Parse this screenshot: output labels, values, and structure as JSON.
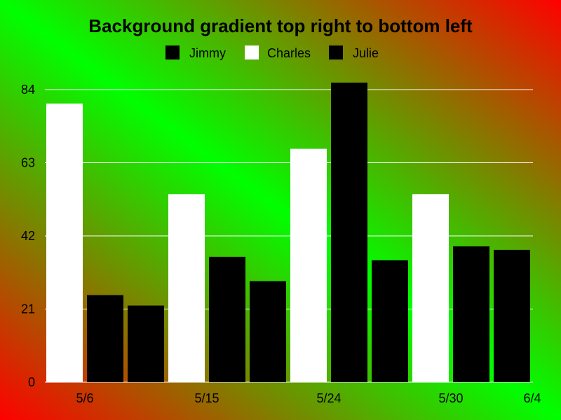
{
  "chart_data": {
    "type": "bar",
    "title": "Background gradient top right to bottom left",
    "legend": {
      "position": "top",
      "entries": [
        "Jimmy",
        "Charles",
        "Julie"
      ]
    },
    "x_tick_labels": [
      "5/6",
      "5/15",
      "5/24",
      "5/30",
      "6/4"
    ],
    "categories": [
      "5/6",
      "5/15",
      "5/24",
      "5/30"
    ],
    "series": [
      {
        "name": "Jimmy",
        "color": "#000000",
        "values": [
          0,
          0,
          0,
          0
        ]
      },
      {
        "name": "Charles",
        "color": "#ffffff",
        "values": [
          80,
          54,
          67,
          54
        ]
      },
      {
        "name": "Julie",
        "color": "#000000",
        "values": [
          25,
          36,
          86,
          39
        ]
      }
    ],
    "extra_bars_color": "#000000",
    "extra_bars_values": [
      22,
      29,
      35,
      38
    ],
    "ylim": [
      0,
      84
    ],
    "yticks": [
      0,
      21,
      42,
      63,
      84
    ],
    "grid": true,
    "colors": {
      "background_gradient": [
        "#ff0000",
        "#00ff00",
        "#ff0000"
      ],
      "gridline": "#ffffff",
      "text": "#000000"
    }
  }
}
